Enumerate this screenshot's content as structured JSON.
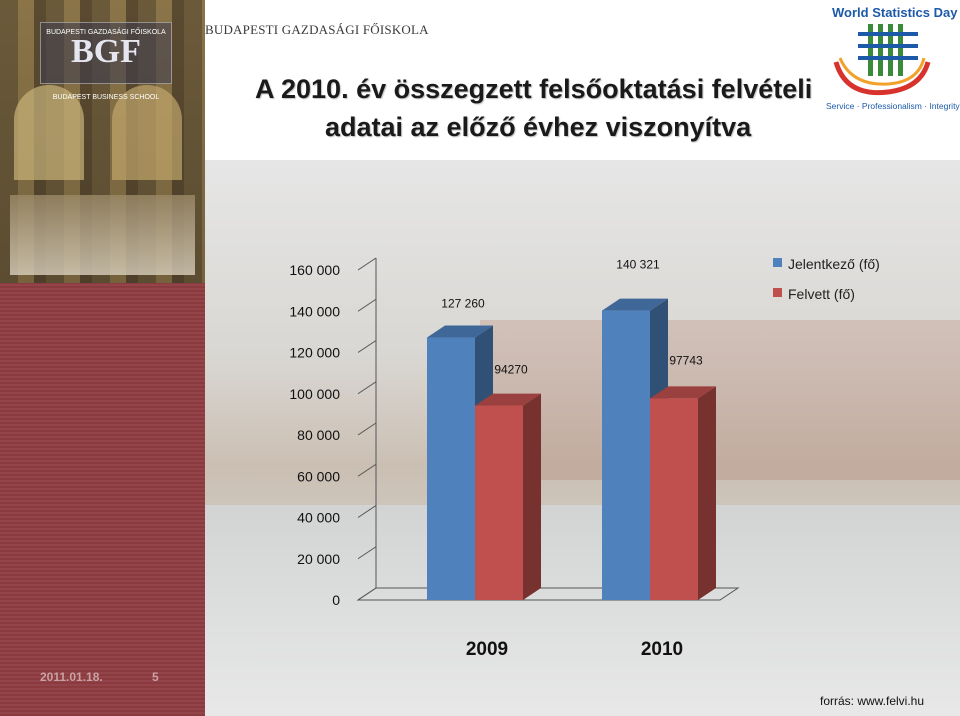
{
  "header": {
    "school_name": "BUDAPESTI GAZDASÁGI FŐISKOLA",
    "title_line1": "A 2010. év összegzett felsőoktatási felvételi",
    "title_line2": "adatai az előző évhez viszonyítva"
  },
  "logo": {
    "top_text": "BUDAPESTI GAZDASÁGI FŐISKOLA",
    "mark": "BGF",
    "bottom_text": "BUDAPEST BUSINESS SCHOOL"
  },
  "wsd_logo": {
    "title": "World Statistics Day",
    "tagline": "Service · Professionalism · Integrity"
  },
  "footer": {
    "date": "2011.01.18.",
    "page": "5",
    "source": "forrás: www.felvi.hu"
  },
  "colors": {
    "series1": "#4f81bd",
    "series2": "#c0504d",
    "accent_red": "#8b3a3e"
  },
  "chart_data": {
    "type": "bar",
    "categories": [
      "2009",
      "2010"
    ],
    "series": [
      {
        "name": "Jelentkező (fő)",
        "values": [
          127260,
          140321
        ],
        "labels": [
          "127 260",
          "140 321"
        ]
      },
      {
        "name": "Felvett (fő)",
        "values": [
          94270,
          97743
        ],
        "labels": [
          "94270",
          "97743"
        ]
      }
    ],
    "ylim": [
      0,
      160000
    ],
    "yticks": [
      0,
      20000,
      40000,
      60000,
      80000,
      100000,
      120000,
      140000,
      160000
    ],
    "ytick_labels": [
      "0",
      "20 000",
      "40 000",
      "60 000",
      "80 000",
      "100 000",
      "120 000",
      "140 000",
      "160 000"
    ],
    "legend_position": "top-right",
    "grid": false
  }
}
